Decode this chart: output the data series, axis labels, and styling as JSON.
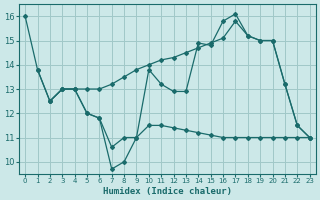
{
  "background_color": "#cce8e8",
  "grid_color": "#a0c8c8",
  "line_color": "#1a6b6b",
  "xlabel": "Humidex (Indice chaleur)",
  "xlim": [
    -0.5,
    23.5
  ],
  "ylim": [
    9.5,
    16.5
  ],
  "xticks": [
    0,
    1,
    2,
    3,
    4,
    5,
    6,
    7,
    8,
    9,
    10,
    11,
    12,
    13,
    14,
    15,
    16,
    17,
    18,
    19,
    20,
    21,
    22,
    23
  ],
  "yticks": [
    10,
    11,
    12,
    13,
    14,
    15,
    16
  ],
  "series1_x": [
    0,
    1,
    2,
    3,
    4,
    5,
    6,
    7,
    8,
    9,
    10,
    11,
    12,
    13,
    14,
    15,
    16,
    17,
    18,
    19,
    20,
    21,
    22,
    23
  ],
  "series1_y": [
    16.0,
    13.8,
    12.5,
    13.0,
    13.0,
    12.0,
    11.8,
    9.7,
    10.0,
    11.0,
    11.5,
    11.5,
    11.4,
    11.3,
    11.2,
    11.1,
    11.0,
    11.0,
    11.0,
    11.0,
    11.0,
    11.0,
    11.0,
    11.0
  ],
  "series2_x": [
    1,
    2,
    3,
    4,
    5,
    6,
    7,
    8,
    9,
    10,
    11,
    12,
    13,
    14,
    15,
    16,
    17,
    18,
    19,
    20,
    21,
    22,
    23
  ],
  "series2_y": [
    13.8,
    12.5,
    13.0,
    13.0,
    12.0,
    11.8,
    10.6,
    11.0,
    11.0,
    13.8,
    13.2,
    12.9,
    12.9,
    14.9,
    14.8,
    15.8,
    16.1,
    15.2,
    15.0,
    15.0,
    13.2,
    11.5,
    11.0
  ],
  "series3_x": [
    2,
    3,
    4,
    5,
    6,
    7,
    8,
    9,
    10,
    11,
    12,
    13,
    14,
    15,
    16,
    17,
    18,
    19,
    20,
    21,
    22,
    23
  ],
  "series3_y": [
    12.5,
    13.0,
    13.0,
    13.0,
    13.0,
    13.2,
    13.5,
    13.8,
    14.0,
    14.2,
    14.3,
    14.5,
    14.7,
    14.9,
    15.1,
    15.8,
    15.2,
    15.0,
    15.0,
    13.2,
    11.5,
    11.0
  ]
}
